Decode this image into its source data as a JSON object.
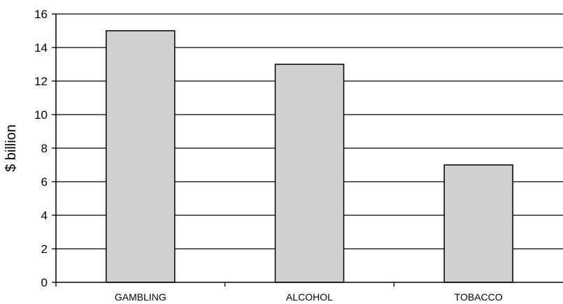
{
  "chart_data": {
    "type": "bar",
    "categories": [
      "GAMBLING",
      "ALCOHOL",
      "TOBACCO"
    ],
    "values": [
      15,
      13,
      7
    ],
    "ylabel": "$ billion",
    "xlabel": "",
    "ylim": [
      0,
      16
    ],
    "yticks": [
      0,
      2,
      4,
      6,
      8,
      10,
      12,
      14,
      16
    ],
    "grid": true,
    "legend": false,
    "colors": {
      "bar_fill": "#d0d0d0",
      "bar_stroke": "#000000",
      "grid": "#000000",
      "axis": "#000000"
    }
  }
}
